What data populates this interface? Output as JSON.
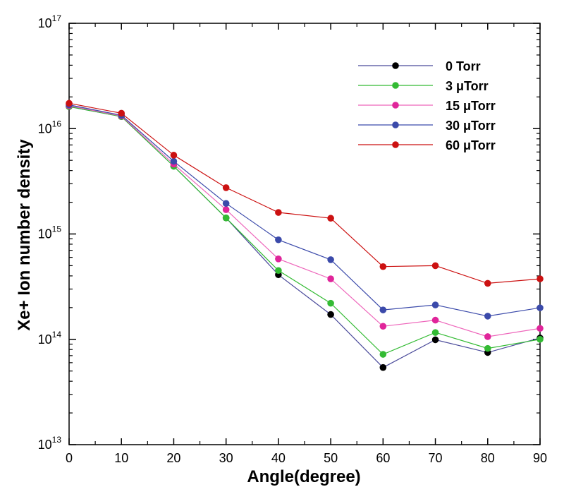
{
  "chart_data": {
    "type": "line",
    "title": "",
    "xlabel": "Angle(degree)",
    "ylabel": "Xe+ Ion number density",
    "x": [
      0,
      10,
      20,
      30,
      40,
      50,
      60,
      70,
      80,
      90
    ],
    "xlim": [
      0,
      90
    ],
    "xticks": [
      0,
      10,
      20,
      30,
      40,
      50,
      60,
      70,
      80,
      90
    ],
    "yscale": "log",
    "ylim": [
      10000000000000.0,
      1e+17
    ],
    "ytick_labels": [
      {
        "base": "10",
        "exp": "13"
      },
      {
        "base": "10",
        "exp": "14"
      },
      {
        "base": "10",
        "exp": "15"
      },
      {
        "base": "10",
        "exp": "16"
      },
      {
        "base": "10",
        "exp": "17"
      }
    ],
    "grid": false,
    "legend_position": "top-right",
    "series": [
      {
        "name": "0 Torr",
        "color": "#000000",
        "line_color": "#4a4a9a",
        "values": [
          1.62e+16,
          1.3e+16,
          4400000000000000.0,
          1420000000000000.0,
          410000000000000.0,
          172000000000000.0,
          54000000000000.0,
          99000000000000.0,
          75000000000000.0,
          103000000000000.0
        ]
      },
      {
        "name": "3 μTorr",
        "color": "#33bb33",
        "line_color": "#33bb33",
        "values": [
          1.62e+16,
          1.3e+16,
          4400000000000000.0,
          1420000000000000.0,
          450000000000000.0,
          220000000000000.0,
          72000000000000.0,
          116000000000000.0,
          82000000000000.0,
          100000000000000.0
        ]
      },
      {
        "name": "15 μTorr",
        "color": "#e0259a",
        "line_color": "#ee66bb",
        "values": [
          1.65e+16,
          1.32e+16,
          4600000000000000.0,
          1700000000000000.0,
          580000000000000.0,
          375000000000000.0,
          133000000000000.0,
          152000000000000.0,
          106000000000000.0,
          127000000000000.0
        ]
      },
      {
        "name": "30 μTorr",
        "color": "#3b4aaa",
        "line_color": "#3b4aaa",
        "values": [
          1.68e+16,
          1.34e+16,
          4900000000000000.0,
          1950000000000000.0,
          880000000000000.0,
          570000000000000.0,
          190000000000000.0,
          212000000000000.0,
          166000000000000.0,
          199000000000000.0
        ]
      },
      {
        "name": "60 μTorr",
        "color": "#cc1111",
        "line_color": "#cc1111",
        "values": [
          1.74e+16,
          1.4e+16,
          5600000000000000.0,
          2750000000000000.0,
          1600000000000000.0,
          1410000000000000.0,
          490000000000000.0,
          500000000000000.0,
          340000000000000.0,
          375000000000000.0
        ]
      }
    ]
  }
}
